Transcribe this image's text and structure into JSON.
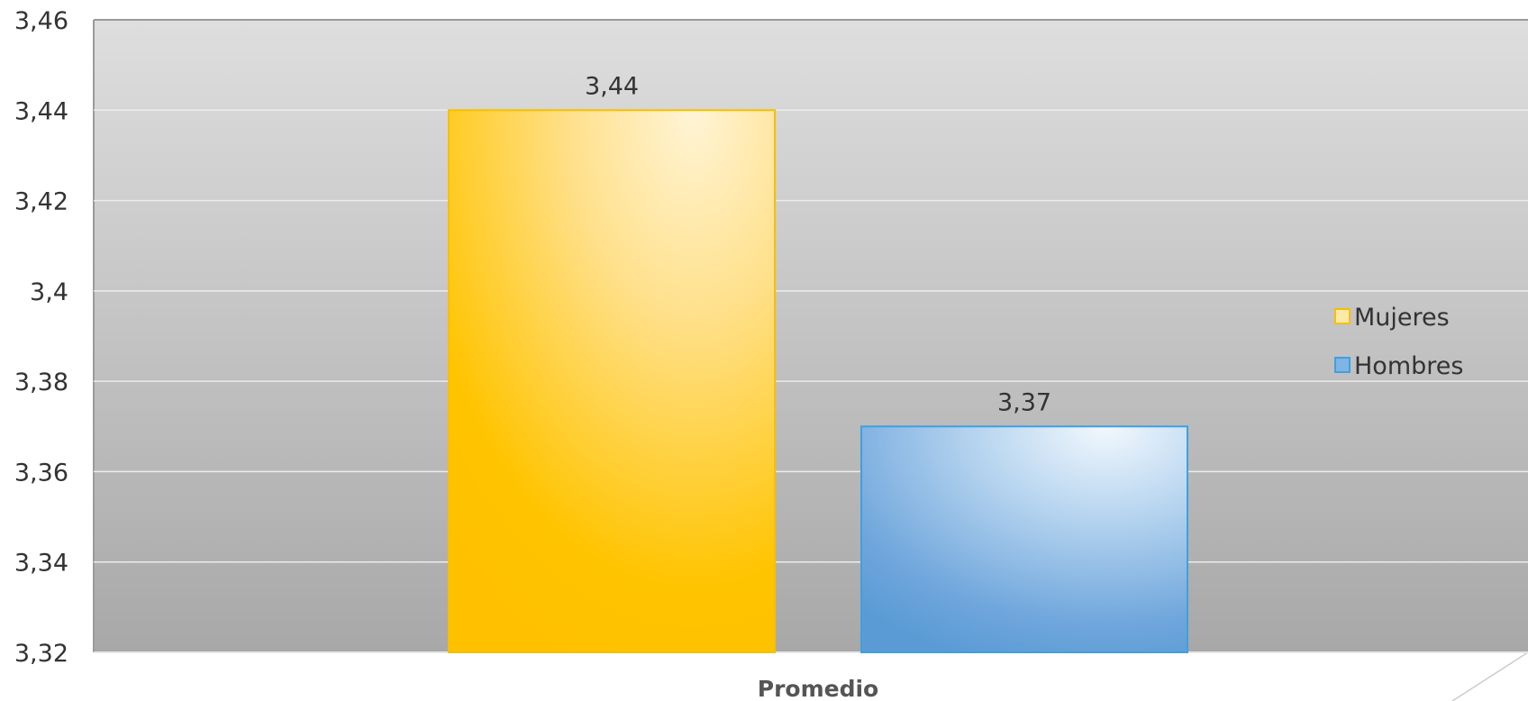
{
  "chart_data": {
    "type": "bar",
    "categories": [
      "Promedio"
    ],
    "series": [
      {
        "name": "Mujeres",
        "values": [
          3.44
        ],
        "data_label": "3,44",
        "color": "#FFC000"
      },
      {
        "name": "Hombres",
        "values": [
          3.37
        ],
        "data_label": "3,37",
        "color": "#5B9BD5"
      }
    ],
    "title": "",
    "xlabel": "",
    "ylabel": "",
    "ylim": [
      3.32,
      3.46
    ],
    "yticks": [
      {
        "value": 3.32,
        "label": "3,32"
      },
      {
        "value": 3.34,
        "label": "3,34"
      },
      {
        "value": 3.36,
        "label": "3,36"
      },
      {
        "value": 3.38,
        "label": "3,38"
      },
      {
        "value": 3.4,
        "label": "3,4"
      },
      {
        "value": 3.42,
        "label": "3,42"
      },
      {
        "value": 3.44,
        "label": "3,44"
      },
      {
        "value": 3.46,
        "label": "3,46"
      }
    ],
    "grid": true,
    "legend_position": "right",
    "background": "gray gradient"
  }
}
